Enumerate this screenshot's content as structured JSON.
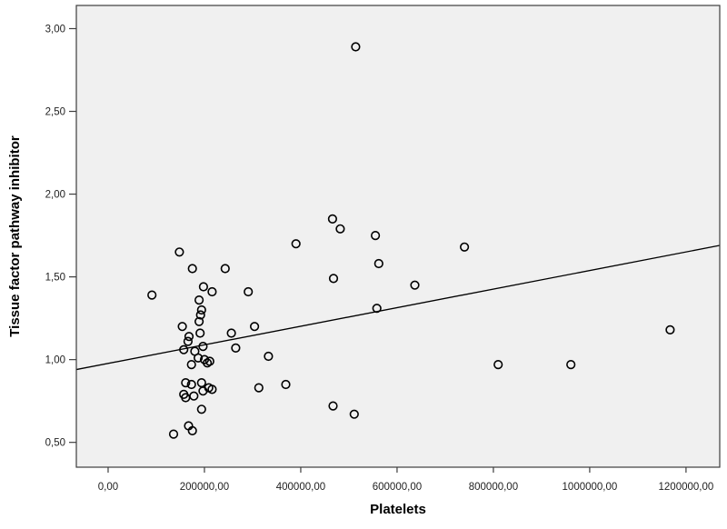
{
  "figure": {
    "background": "#ffffff"
  },
  "chart_data": {
    "type": "scatter",
    "title": "",
    "xlabel": "Platelets",
    "ylabel": "Tissue factor pathway inhibitor",
    "xlim": [
      -66000,
      1270000
    ],
    "ylim": [
      0.35,
      3.14
    ],
    "grid": false,
    "legend_position": "none",
    "decimal_separator": ",",
    "x_ticks": [
      {
        "value": 0,
        "label": "0,00"
      },
      {
        "value": 200000,
        "label": "200000,00"
      },
      {
        "value": 400000,
        "label": "400000,00"
      },
      {
        "value": 600000,
        "label": "600000,00"
      },
      {
        "value": 800000,
        "label": "800000,00"
      },
      {
        "value": 1000000,
        "label": "1000000,00"
      },
      {
        "value": 1200000,
        "label": "1200000,00"
      }
    ],
    "y_ticks": [
      {
        "value": 0.5,
        "label": "0,50"
      },
      {
        "value": 1.0,
        "label": "1,00"
      },
      {
        "value": 1.5,
        "label": "1,50"
      },
      {
        "value": 2.0,
        "label": "2,00"
      },
      {
        "value": 2.5,
        "label": "2,50"
      },
      {
        "value": 3.0,
        "label": "3,00"
      }
    ],
    "points": [
      [
        514000,
        2.89
      ],
      [
        466000,
        1.85
      ],
      [
        482000,
        1.79
      ],
      [
        555000,
        1.75
      ],
      [
        390000,
        1.7
      ],
      [
        740000,
        1.68
      ],
      [
        148000,
        1.65
      ],
      [
        562000,
        1.58
      ],
      [
        175000,
        1.55
      ],
      [
        243000,
        1.55
      ],
      [
        468000,
        1.49
      ],
      [
        637000,
        1.45
      ],
      [
        198000,
        1.44
      ],
      [
        216000,
        1.41
      ],
      [
        291000,
        1.41
      ],
      [
        91000,
        1.39
      ],
      [
        189000,
        1.36
      ],
      [
        558000,
        1.31
      ],
      [
        194000,
        1.3
      ],
      [
        192000,
        1.27
      ],
      [
        189000,
        1.23
      ],
      [
        154000,
        1.2
      ],
      [
        304000,
        1.2
      ],
      [
        1167000,
        1.18
      ],
      [
        191000,
        1.16
      ],
      [
        256000,
        1.16
      ],
      [
        168000,
        1.14
      ],
      [
        166000,
        1.11
      ],
      [
        265000,
        1.07
      ],
      [
        197000,
        1.08
      ],
      [
        157000,
        1.06
      ],
      [
        180000,
        1.05
      ],
      [
        333000,
        1.02
      ],
      [
        187000,
        1.01
      ],
      [
        200000,
        1.0
      ],
      [
        211000,
        0.99
      ],
      [
        206000,
        0.98
      ],
      [
        173000,
        0.97
      ],
      [
        810000,
        0.97
      ],
      [
        961000,
        0.97
      ],
      [
        161000,
        0.86
      ],
      [
        194000,
        0.86
      ],
      [
        173000,
        0.85
      ],
      [
        369000,
        0.85
      ],
      [
        209000,
        0.83
      ],
      [
        313000,
        0.83
      ],
      [
        216000,
        0.82
      ],
      [
        197000,
        0.81
      ],
      [
        157000,
        0.79
      ],
      [
        178000,
        0.78
      ],
      [
        161000,
        0.77
      ],
      [
        194000,
        0.7
      ],
      [
        467000,
        0.72
      ],
      [
        511000,
        0.67
      ],
      [
        167000,
        0.6
      ],
      [
        175000,
        0.57
      ],
      [
        136000,
        0.55
      ]
    ],
    "regression_line": {
      "x1": -66000,
      "y1": 0.94,
      "x2": 1270000,
      "y2": 1.69
    },
    "style": {
      "plot_bg": "#f0f0f0",
      "frame_color": "#3d3d3d",
      "tick_color": "#3d3d3d",
      "tick_label_color": "#1f1f1f",
      "axis_title_color": "#000000",
      "marker_stroke": "#000000",
      "marker_radius": 4.3,
      "marker_stroke_width": 1.6,
      "line_color": "#000000",
      "line_width": 1.3
    }
  }
}
